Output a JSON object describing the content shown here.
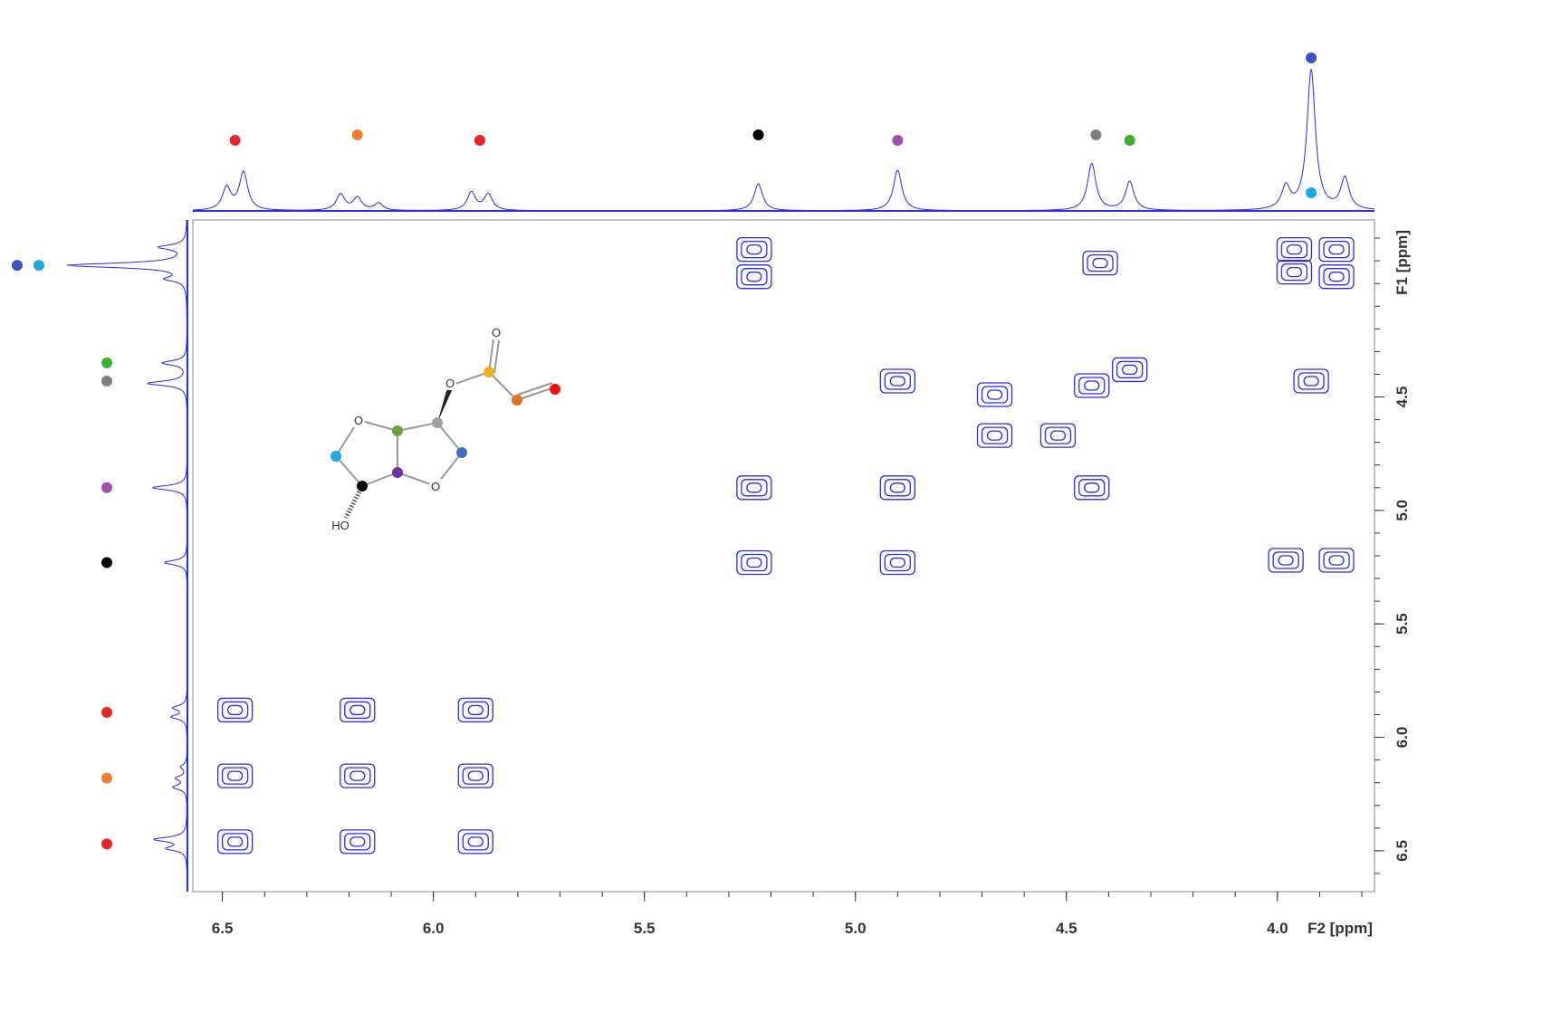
{
  "chart_data": {
    "type": "contour",
    "x_label": "F2 [ppm]",
    "y_label": "F1 [ppm]",
    "xlim": [
      6.57,
      3.77
    ],
    "ylim": [
      3.72,
      6.68
    ],
    "xticks": [
      6.5,
      {
        "value": 6,
        "label": "6.0"
      },
      5.5,
      {
        "value": 5,
        "label": "5.0"
      },
      4.5,
      {
        "value": 4,
        "label": "4.0"
      }
    ],
    "yticks": [
      4.5,
      {
        "value": 5,
        "label": "5.0"
      },
      5.5,
      {
        "value": 6,
        "label": "6.0"
      },
      6.5
    ],
    "minor_step": 0.1,
    "color": "#2a2af0",
    "projection": {
      "ppm": [
        6.49,
        6.45,
        6.22,
        6.18,
        6.13,
        5.91,
        5.87,
        5.23,
        4.9,
        4.44,
        4.35,
        3.98,
        3.92,
        3.84
      ],
      "intensity": [
        25,
        42,
        18,
        14,
        8,
        20,
        18,
        30,
        45,
        52,
        32,
        25,
        155,
        35
      ]
    },
    "cross_peaks": {
      "f2": [
        5.24,
        5.24,
        5.24,
        5.24,
        4.9,
        4.9,
        4.9,
        4.42,
        4.35,
        4.44,
        4.44,
        4.67,
        4.67,
        4.52,
        3.96,
        3.86,
        3.96,
        3.86,
        3.92,
        3.98,
        3.86,
        6.47,
        6.47,
        6.47,
        6.18,
        6.18,
        6.18,
        5.9,
        5.9,
        5.9
      ],
      "f1": [
        3.85,
        3.97,
        4.9,
        5.23,
        4.43,
        4.9,
        5.23,
        3.91,
        4.38,
        4.45,
        4.9,
        4.49,
        4.67,
        4.67,
        3.85,
        3.85,
        3.95,
        3.97,
        4.43,
        5.22,
        5.22,
        5.88,
        6.17,
        6.46,
        5.88,
        6.17,
        6.46,
        5.88,
        6.17,
        6.46
      ]
    },
    "assignments": {
      "ppm": [
        6.47,
        6.18,
        5.89,
        5.23,
        4.9,
        4.43,
        4.35,
        3.92,
        3.92
      ],
      "color": [
        "#e8262a",
        "#f08030",
        "#e8262a",
        "#000000",
        "#a050a8",
        "#808080",
        "#3cb030",
        "#4050c0",
        "#20a8e0"
      ]
    },
    "molecule": {
      "atom_labels": [
        "O",
        "O",
        "O",
        "O",
        "O",
        "HO"
      ]
    }
  }
}
